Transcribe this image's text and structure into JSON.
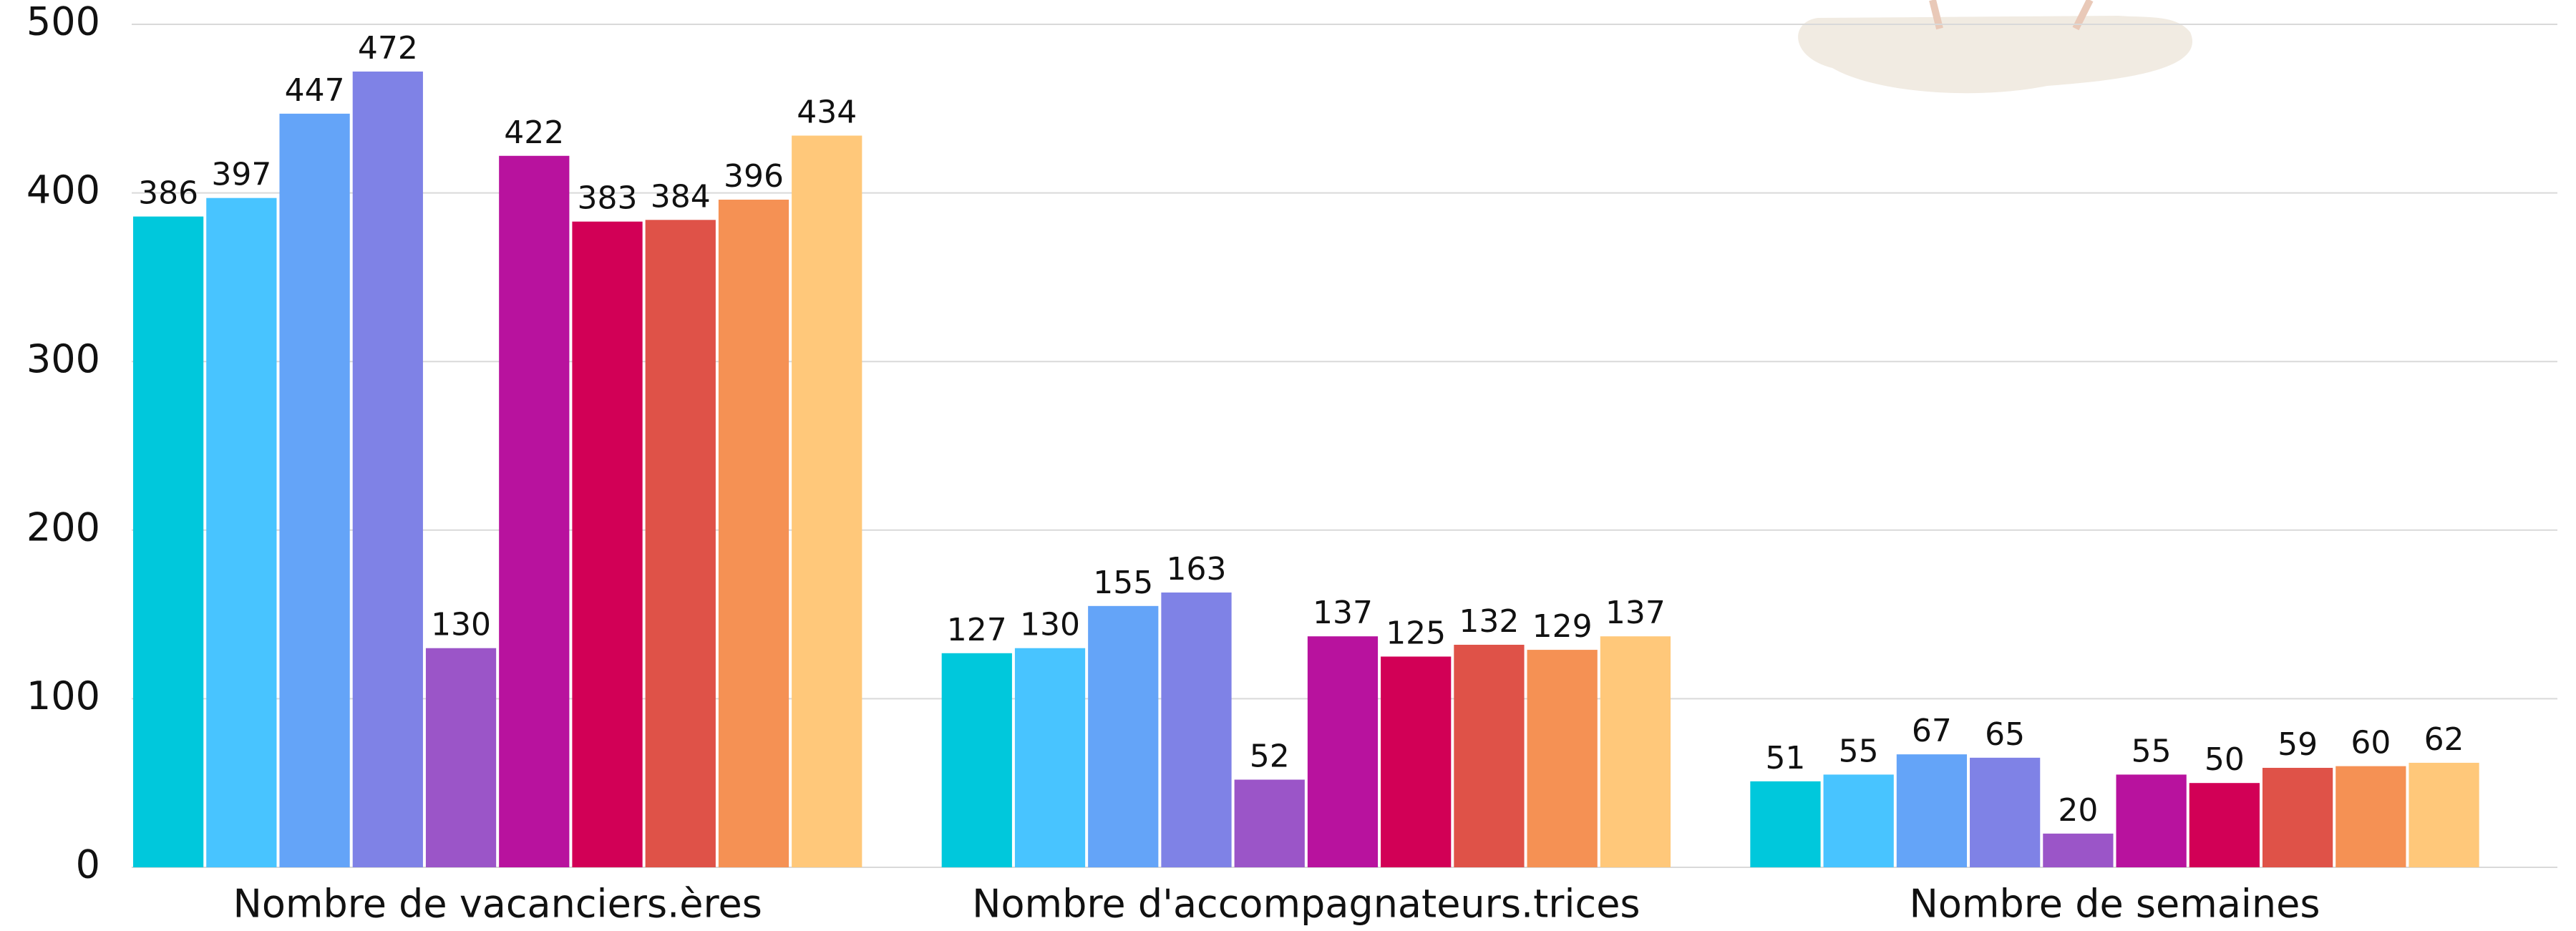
{
  "chart_data": {
    "type": "bar",
    "categories": [
      "Nombre de vacanciers.ères",
      "Nombre d'accompagnateurs.trices",
      "Nombre de semaines"
    ],
    "series": [
      {
        "color": "#00c8dc",
        "values": [
          386,
          127,
          51
        ]
      },
      {
        "color": "#48c4ff",
        "values": [
          397,
          130,
          55
        ]
      },
      {
        "color": "#64a4f8",
        "values": [
          447,
          155,
          67
        ]
      },
      {
        "color": "#7f82e6",
        "values": [
          472,
          163,
          65
        ]
      },
      {
        "color": "#9b55c8",
        "values": [
          130,
          52,
          20
        ]
      },
      {
        "color": "#b8129e",
        "values": [
          422,
          137,
          55
        ]
      },
      {
        "color": "#d20056",
        "values": [
          383,
          125,
          50
        ]
      },
      {
        "color": "#df5248",
        "values": [
          384,
          132,
          59
        ]
      },
      {
        "color": "#f59154",
        "values": [
          396,
          129,
          60
        ]
      },
      {
        "color": "#ffc87a",
        "values": [
          434,
          137,
          62
        ]
      }
    ],
    "ylim": [
      0,
      500
    ],
    "yticks": [
      0,
      100,
      200,
      300,
      400,
      500
    ],
    "grid": true
  }
}
